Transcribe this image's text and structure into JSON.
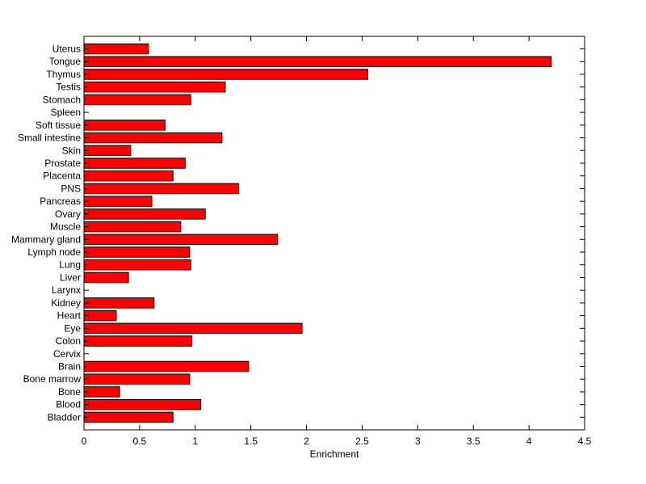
{
  "chart_data": {
    "type": "bar",
    "orientation": "horizontal",
    "title": "",
    "xlabel": "Enrichment",
    "ylabel": "",
    "xlim": [
      0,
      4.5
    ],
    "xticks": [
      "0",
      "0.5",
      "1",
      "1.5",
      "2",
      "2.5",
      "3",
      "3.5",
      "4",
      "4.5"
    ],
    "grid": false,
    "bar_color": "#ff0000",
    "categories": [
      "Uterus",
      "Tongue",
      "Thymus",
      "Testis",
      "Stomach",
      "Spleen",
      "Soft tissue",
      "Small intestine",
      "Skin",
      "Prostate",
      "Placenta",
      "PNS",
      "Pancreas",
      "Ovary",
      "Muscle",
      "Mammary gland",
      "Lymph node",
      "Lung",
      "Liver",
      "Larynx",
      "Kidney",
      "Heart",
      "Eye",
      "Colon",
      "Cervix",
      "Brain",
      "Bone marrow",
      "Bone",
      "Blood",
      "Bladder"
    ],
    "values": [
      0.58,
      4.2,
      2.55,
      1.27,
      0.96,
      0,
      0.73,
      1.24,
      0.42,
      0.91,
      0.8,
      1.39,
      0.61,
      1.09,
      0.87,
      1.74,
      0.95,
      0.96,
      0.4,
      0,
      0.63,
      0.29,
      1.96,
      0.97,
      0,
      1.48,
      0.95,
      0.32,
      1.05,
      0.8
    ]
  }
}
